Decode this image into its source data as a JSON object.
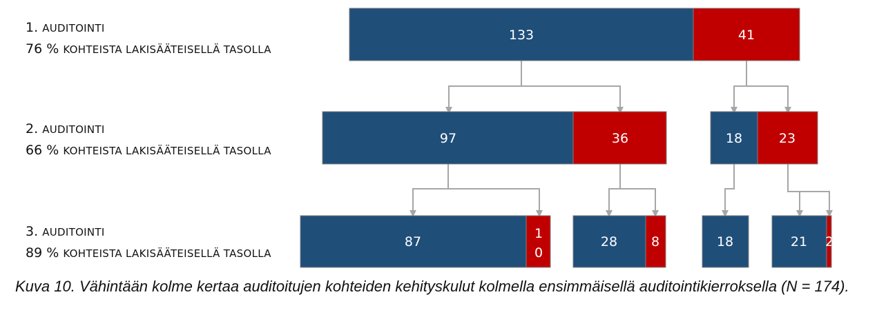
{
  "colors": {
    "good": "#1f4e79",
    "bad": "#c00000",
    "connector": "#a6a6a6",
    "bar_border": "#7f7f7f"
  },
  "rows": [
    {
      "title_num": "1.",
      "title_word": "Auditointi",
      "percent": "76 %",
      "subtitle": "kohteista lakisääteisellä tasolla"
    },
    {
      "title_num": "2.",
      "title_word": "Auditointi",
      "percent": "66 %",
      "subtitle": "kohteista lakisääteisellä tasolla"
    },
    {
      "title_num": "3.",
      "title_word": "Auditointi",
      "percent": "89 %",
      "subtitle": "kohteista lakisääteisellä tasolla"
    }
  ],
  "tree": {
    "level1": [
      {
        "good": "133",
        "bad": "41"
      }
    ],
    "level2": [
      {
        "good": "97",
        "bad": "36"
      },
      {
        "good": "18",
        "bad": "23"
      }
    ],
    "level3": [
      {
        "good": "87",
        "bad": "10"
      },
      {
        "good": "28",
        "bad": "8"
      },
      {
        "good": "18",
        "bad": ""
      },
      {
        "good": "21",
        "bad": "2"
      }
    ]
  },
  "caption": "Kuva 10. Vähintään kolme kertaa auditoitujen kohteiden kehityskulut kolmella ensimmäisellä auditointikierroksella (N = 174)."
}
